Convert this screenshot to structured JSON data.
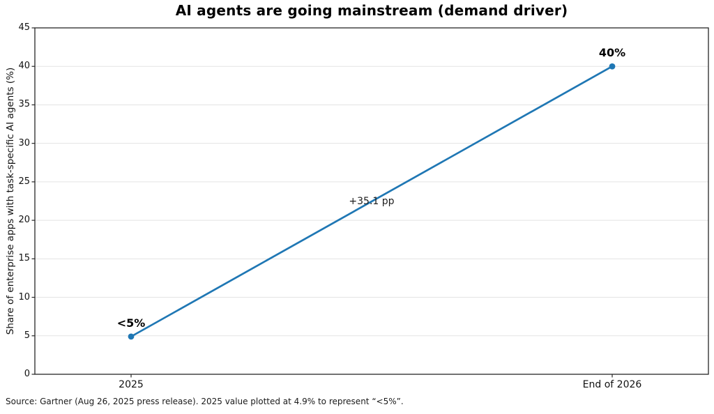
{
  "figure": {
    "source_note": "Source: Gartner (Aug 26, 2025 press release). 2025 value plotted at 4.9% to represent “<5%”."
  },
  "chart_data": {
    "type": "line",
    "title": "AI agents are going mainstream (demand driver)",
    "categories": [
      "2025",
      "End of 2026"
    ],
    "series": [
      {
        "name": "Share of enterprise apps with task-specific AI agents",
        "values": [
          4.9,
          40
        ]
      }
    ],
    "point_labels": [
      "<5%",
      "40%"
    ],
    "annotations": [
      {
        "text": "+35.1 pp",
        "position": "midpoint"
      }
    ],
    "xlabel": "",
    "ylabel": "Share of enterprise apps with task-specific AI agents (%)",
    "ylim": [
      0,
      45
    ],
    "yticks": [
      0,
      5,
      10,
      15,
      20,
      25,
      30,
      35,
      40,
      45
    ],
    "grid": "horizontal-light",
    "legend": "none",
    "colors": {
      "line": "#1f77b4",
      "marker": "#1f77b4",
      "grid": "#e3e3e3",
      "spine": "#262626",
      "title_text": "#000000",
      "tick_text": "#111111",
      "annotation_text": "#1c1c1c",
      "source_text": "#1a1a1a",
      "background": "#ffffff"
    }
  }
}
